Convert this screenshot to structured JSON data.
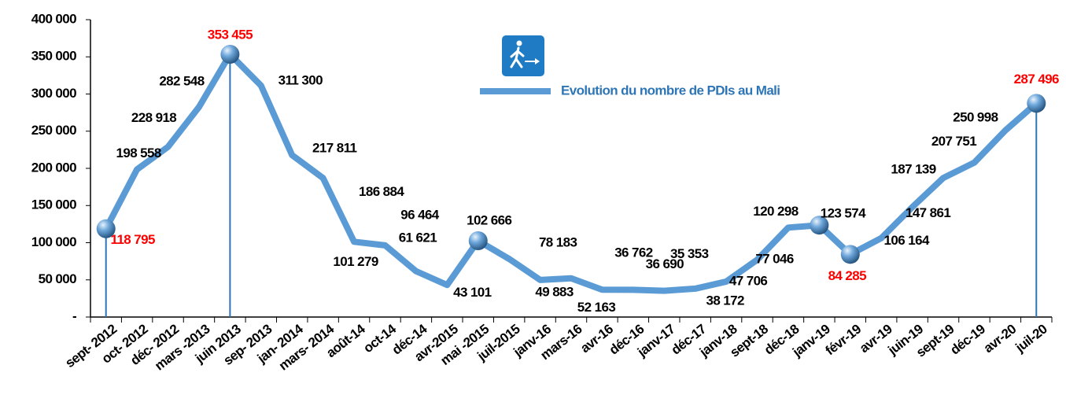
{
  "chart_data": {
    "type": "line",
    "categories": [
      "sept- 2012",
      "oct- 2012",
      "déc- 2012",
      "mars -2013",
      "juin 2013",
      "sep- 2013",
      "jan- 2014",
      "mars- 2014",
      "août-14",
      "oct-14",
      "déc-14",
      "avr-2015",
      "mai -2015",
      "juil-2015",
      "janv-16",
      "mars-16",
      "avr-16",
      "déc-16",
      "janv-17",
      "déc-17",
      "janv-18",
      "sept-18",
      "déc-18",
      "janv-19",
      "févr-19",
      "avr-19",
      "juin-19",
      "sept-19",
      "déc-19",
      "avr-20",
      "juil-20"
    ],
    "series": [
      {
        "name": "Evolution du nombre de PDIs au Mali",
        "color": "#5b9bd5",
        "values": [
          118795,
          198558,
          228918,
          282548,
          353455,
          311300,
          217811,
          186884,
          101279,
          96464,
          61621,
          43101,
          102666,
          78183,
          49883,
          52163,
          36762,
          36690,
          35353,
          38172,
          47706,
          77046,
          120298,
          123574,
          84285,
          106164,
          147861,
          187139,
          207751,
          250998,
          287496
        ],
        "value_labels": [
          "118 795",
          "198 558",
          "228 918",
          "282 548",
          "353 455",
          "311 300",
          "217 811",
          "186 884",
          "101 279",
          "96 464",
          "61 621",
          "43 101",
          "102 666",
          "78 183",
          "49 883",
          "52 163",
          "36 762",
          "36 690",
          "35 353",
          "38 172",
          "47 706",
          "77 046",
          "120 298",
          "123 574",
          "84 285",
          "106 164",
          "147 861",
          "187 139",
          "207 751",
          "250 998",
          "287 496"
        ],
        "value_label_colors": [
          "#ff0000",
          "#000000",
          "#000000",
          "#000000",
          "#ff0000",
          "#000000",
          "#000000",
          "#000000",
          "#000000",
          "#000000",
          "#000000",
          "#000000",
          "#000000",
          "#000000",
          "#000000",
          "#000000",
          "#000000",
          "#000000",
          "#000000",
          "#000000",
          "#000000",
          "#000000",
          "#000000",
          "#000000",
          "#ff0000",
          "#000000",
          "#000000",
          "#000000",
          "#000000",
          "#000000",
          "#ff0000"
        ],
        "marker_indices": [
          0,
          4,
          12,
          23,
          24,
          30
        ],
        "drop_line_indices": [
          0,
          4,
          30
        ]
      }
    ],
    "ylim": [
      0,
      400000
    ],
    "yticks": [
      {
        "value": 0,
        "label": "-"
      },
      {
        "value": 50000,
        "label": "50 000"
      },
      {
        "value": 100000,
        "label": "100 000"
      },
      {
        "value": 150000,
        "label": "150 000"
      },
      {
        "value": 200000,
        "label": "200 000"
      },
      {
        "value": 250000,
        "label": "250 000"
      },
      {
        "value": 300000,
        "label": "300 000"
      },
      {
        "value": 350000,
        "label": "350 000"
      },
      {
        "value": 400000,
        "label": "400 000"
      }
    ],
    "legend": "top-right",
    "grid": false
  }
}
